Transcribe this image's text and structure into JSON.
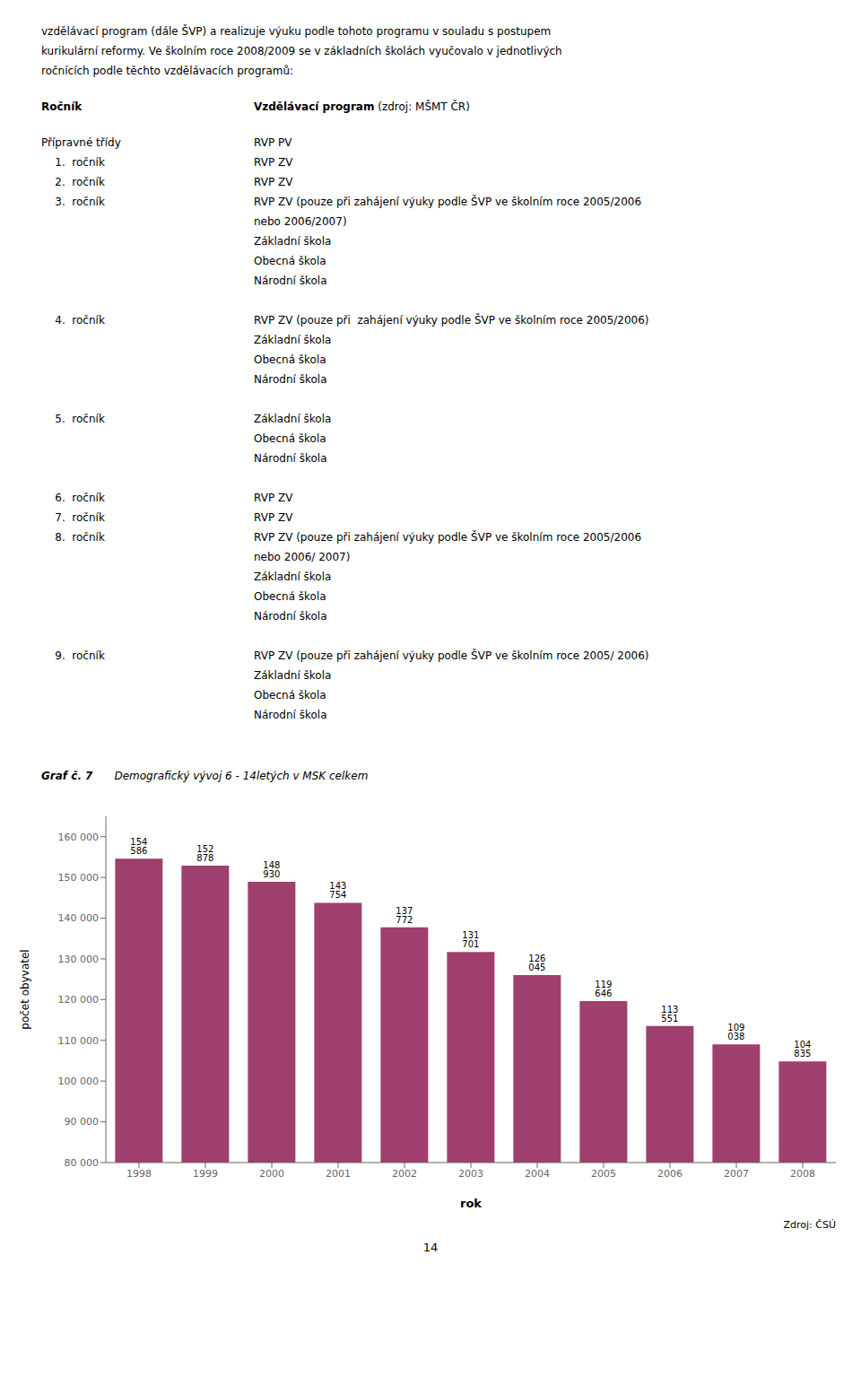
{
  "chart_data": {
    "type": "bar",
    "title": "Demografický vývoj 6 - 14letých v MSK celkem",
    "xlabel": "rok",
    "ylabel": "počet obyvatel",
    "categories": [
      "1998",
      "1999",
      "2000",
      "2001",
      "2002",
      "2003",
      "2004",
      "2005",
      "2006",
      "2007",
      "2008"
    ],
    "values": [
      154586,
      152878,
      148930,
      143754,
      137772,
      131701,
      126045,
      119646,
      113551,
      109038,
      104835
    ],
    "value_labels": [
      "154 586",
      "152 878",
      "148 930",
      "143 754",
      "137 772",
      "131 701",
      "126 045",
      "119 646",
      "113 551",
      "109 038",
      "104 835"
    ],
    "color": "#9e3f6e",
    "ylim": [
      80000,
      165000
    ],
    "yticks": [
      {
        "value": 80000,
        "label": "80 000"
      },
      {
        "value": 90000,
        "label": "90 000"
      },
      {
        "value": 100000,
        "label": "100 000"
      },
      {
        "value": 110000,
        "label": "110 000"
      },
      {
        "value": 120000,
        "label": "120 000"
      },
      {
        "value": 130000,
        "label": "130 000"
      },
      {
        "value": 140000,
        "label": "140 000"
      },
      {
        "value": 150000,
        "label": "150 000"
      },
      {
        "value": 160000,
        "label": "160 000"
      }
    ],
    "grid": false,
    "data_labels": true,
    "annotations": {
      "intro": [
        "vzdělávací program (dále ŠVP) a realizuje výuku podle tohoto programu v souladu s postupem",
        "kurikulární reformy. Ve školním roce 2008/2009 se v základních školách vyučovalo v jednotlivých",
        "ročnících podle těchto vzdělávacích programů:"
      ],
      "table_header": [
        "Ročník",
        "Vzdělávací program",
        " (zdroj: MŠMT ČR)"
      ],
      "table_rows": [
        [
          "Přípravné třídy",
          [
            "RVP PV"
          ]
        ],
        [
          "    1.  ročník",
          [
            "RVP ZV"
          ]
        ],
        [
          "    2.  ročník",
          [
            "RVP ZV"
          ]
        ],
        [
          "    3.  ročník",
          [
            "RVP ZV (pouze při zahájení výuky podle ŠVP ve školním roce 2005/2006",
            "nebo 2006/2007)",
            "Základní škola",
            "Obecná škola",
            "Národní škola"
          ]
        ],
        [
          "    4.  ročník",
          [
            "RVP ZV (pouze při  zahájení výuky podle ŠVP ve školním roce 2005/2006)",
            "Základní škola",
            "Obecná škola",
            "Národní škola"
          ]
        ],
        [
          "    5.  ročník",
          [
            "Základní škola",
            "Obecná škola",
            "Národní škola"
          ]
        ],
        [
          "    6.  ročník",
          [
            "RVP ZV"
          ]
        ],
        [
          "    7.  ročník",
          [
            "RVP ZV"
          ]
        ],
        [
          "    8.  ročník",
          [
            "RVP ZV (pouze při zahájení výuky podle ŠVP ve školním roce 2005/2006",
            "nebo 2006/ 2007)",
            "Základní škola",
            "Obecná škola",
            "Národní škola"
          ]
        ],
        [
          "    9.  ročník",
          [
            "RVP ZV (pouze při zahájení výuky podle ŠVP ve školním roce 2005/ 2006)",
            "Základní škola",
            "Obecná škola",
            "Národní škola"
          ]
        ]
      ],
      "figure_label": "Graf č. 7",
      "source": "Zdroj: ČSÚ",
      "page_number": "14"
    }
  }
}
